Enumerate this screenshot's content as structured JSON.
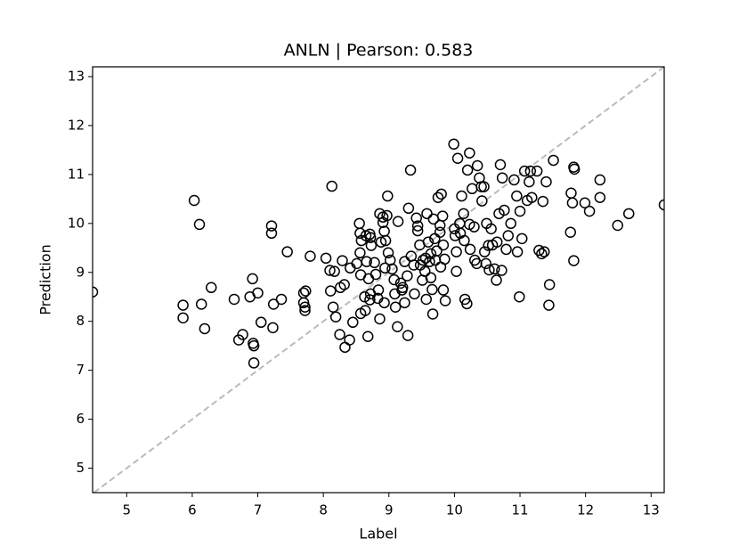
{
  "chart_data": {
    "type": "scatter",
    "title": "ANLN  |  Pearson: 0.583",
    "x_label": "Label",
    "y_label": "Prediction",
    "xlim": [
      4.48,
      13.2
    ],
    "ylim": [
      4.5,
      13.2
    ],
    "xticks": [
      5,
      6,
      7,
      8,
      9,
      10,
      11,
      12,
      13
    ],
    "yticks": [
      5,
      6,
      7,
      8,
      9,
      10,
      11,
      12,
      13
    ],
    "diagonal": true,
    "diagonal_color": "#bbbbbb",
    "marker_color": "#000000",
    "x": [
      4.48,
      5.86,
      5.86,
      6.03,
      6.11,
      6.14,
      6.19,
      6.29,
      6.64,
      6.71,
      6.77,
      6.88,
      6.92,
      6.93,
      6.94,
      6.94,
      7.0,
      7.05,
      7.21,
      7.21,
      7.24,
      7.23,
      7.36,
      7.45,
      7.7,
      7.73,
      7.7,
      7.72,
      7.72,
      7.8,
      8.04,
      8.13,
      8.1,
      8.17,
      8.11,
      8.15,
      8.19,
      8.26,
      8.32,
      8.25,
      8.33,
      8.4,
      8.29,
      8.41,
      8.45,
      8.51,
      8.56,
      8.57,
      8.63,
      8.57,
      8.64,
      8.55,
      8.56,
      8.58,
      8.65,
      8.66,
      8.69,
      8.72,
      8.71,
      8.68,
      8.71,
      8.72,
      8.73,
      8.78,
      8.8,
      8.84,
      8.83,
      8.86,
      8.86,
      8.91,
      8.93,
      8.95,
      8.88,
      8.91,
      8.94,
      8.93,
      8.98,
      8.97,
      8.99,
      9.02,
      9.05,
      9.08,
      9.09,
      9.1,
      9.13,
      9.14,
      9.18,
      9.2,
      9.21,
      9.24,
      9.24,
      9.28,
      9.29,
      9.33,
      9.3,
      9.34,
      9.38,
      9.39,
      9.42,
      9.44,
      9.44,
      9.47,
      9.48,
      9.51,
      9.55,
      9.52,
      9.56,
      9.57,
      9.58,
      9.6,
      9.62,
      9.64,
      9.64,
      9.66,
      9.67,
      9.68,
      9.7,
      9.71,
      9.73,
      9.75,
      9.78,
      9.78,
      9.79,
      9.8,
      9.82,
      9.83,
      9.85,
      9.83,
      9.86,
      9.99,
      10.0,
      10.01,
      10.03,
      10.03,
      10.05,
      10.08,
      10.09,
      10.11,
      10.14,
      10.15,
      10.16,
      10.19,
      10.23,
      10.2,
      10.23,
      10.24,
      10.27,
      10.3,
      10.31,
      10.34,
      10.35,
      10.38,
      10.41,
      10.42,
      10.45,
      10.46,
      10.48,
      10.49,
      10.52,
      10.53,
      10.56,
      10.58,
      10.61,
      10.64,
      10.65,
      10.68,
      10.7,
      10.72,
      10.73,
      10.76,
      10.79,
      10.82,
      10.86,
      10.91,
      10.95,
      10.96,
      10.99,
      11.0,
      11.03,
      11.07,
      11.11,
      11.14,
      11.16,
      11.18,
      11.26,
      11.29,
      11.33,
      11.35,
      11.37,
      11.4,
      11.45,
      11.44,
      11.51,
      11.77,
      11.78,
      11.8,
      11.82,
      11.82,
      11.83,
      11.99,
      12.06,
      12.22,
      12.22,
      12.49,
      12.66,
      13.2
    ],
    "y": [
      8.6,
      8.33,
      8.07,
      10.47,
      9.98,
      8.35,
      7.85,
      8.69,
      8.45,
      7.62,
      7.73,
      8.5,
      8.87,
      7.55,
      7.5,
      7.15,
      8.58,
      7.98,
      9.95,
      9.8,
      8.35,
      7.87,
      8.45,
      9.42,
      8.58,
      8.62,
      8.38,
      8.29,
      8.22,
      9.33,
      9.29,
      10.76,
      9.04,
      9.02,
      8.62,
      8.29,
      8.09,
      8.69,
      8.75,
      7.73,
      7.47,
      7.62,
      9.24,
      9.09,
      7.98,
      9.18,
      9.4,
      8.95,
      8.5,
      8.16,
      8.22,
      10.0,
      9.8,
      9.65,
      9.75,
      9.22,
      8.87,
      8.56,
      8.44,
      7.69,
      9.78,
      9.71,
      9.55,
      9.2,
      8.96,
      8.64,
      8.47,
      8.05,
      10.2,
      10.13,
      9.84,
      9.65,
      9.62,
      10.02,
      9.09,
      8.38,
      10.56,
      10.16,
      9.4,
      9.25,
      9.07,
      8.85,
      8.56,
      8.29,
      7.89,
      10.04,
      8.78,
      8.64,
      8.69,
      8.38,
      9.22,
      8.93,
      7.71,
      11.09,
      10.31,
      9.33,
      9.15,
      8.56,
      10.11,
      9.95,
      9.85,
      9.56,
      9.15,
      8.84,
      9.02,
      9.25,
      9.29,
      8.45,
      10.2,
      9.62,
      9.22,
      9.38,
      8.89,
      8.65,
      8.15,
      10.09,
      9.69,
      9.25,
      9.44,
      10.53,
      9.96,
      9.82,
      9.11,
      10.6,
      10.15,
      9.56,
      9.27,
      8.64,
      8.42,
      11.62,
      9.89,
      9.75,
      9.42,
      9.02,
      11.33,
      10.0,
      9.8,
      10.56,
      10.2,
      9.65,
      8.45,
      8.36,
      11.44,
      11.09,
      9.98,
      9.47,
      10.71,
      9.93,
      9.25,
      9.18,
      11.18,
      10.93,
      10.75,
      10.46,
      10.75,
      9.42,
      9.18,
      10.0,
      9.55,
      9.05,
      9.89,
      9.56,
      9.07,
      8.84,
      9.62,
      10.2,
      11.2,
      9.04,
      10.93,
      10.27,
      9.47,
      9.75,
      10.0,
      10.89,
      10.56,
      9.42,
      8.5,
      10.25,
      9.69,
      11.07,
      10.47,
      10.85,
      11.07,
      10.53,
      11.07,
      9.45,
      9.38,
      10.45,
      9.42,
      10.85,
      8.75,
      8.33,
      11.29,
      9.82,
      10.62,
      10.42,
      9.24,
      11.15,
      11.11,
      10.42,
      10.25,
      10.89,
      10.53,
      9.96,
      10.2,
      10.38
    ]
  }
}
